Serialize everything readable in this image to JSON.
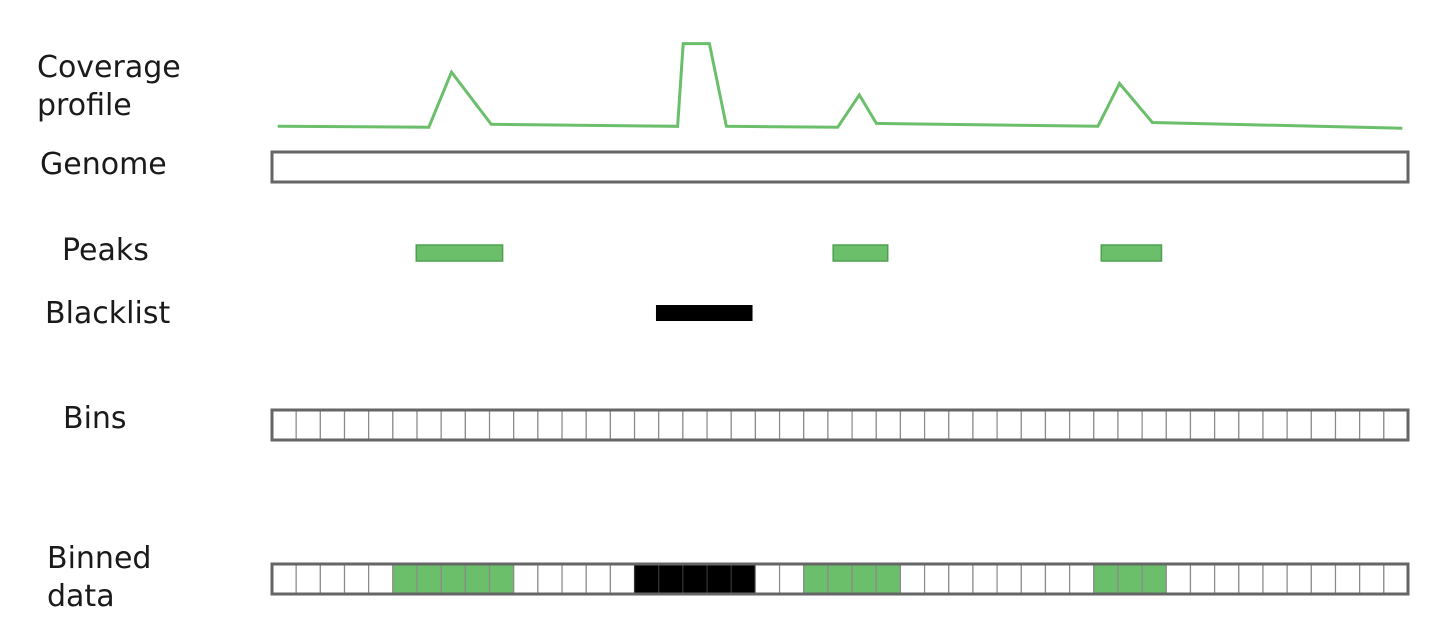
{
  "labels": {
    "coverage": "Coverage\nprofile",
    "genome": "Genome",
    "peaks": "Peaks",
    "blacklist": "Blacklist",
    "bins": "Bins",
    "binned": "Binned\ndata"
  },
  "colors": {
    "coverage_line": "#6bbf6b",
    "peak_fill": "#6bbf6b",
    "peak_stroke": "#4f9f4f",
    "blacklist_fill": "#000000",
    "frame": "#666666",
    "bin_stroke": "#8a8a8a",
    "bin_fill": "#ffffff"
  },
  "genome": {
    "length": 1000
  },
  "bin_count": 47,
  "coverage_profile": [
    [
      5,
      0.05
    ],
    [
      138,
      0.04
    ],
    [
      158,
      0.62
    ],
    [
      193,
      0.07
    ],
    [
      357,
      0.05
    ],
    [
      362,
      0.92
    ],
    [
      385,
      0.92
    ],
    [
      400,
      0.05
    ],
    [
      498,
      0.04
    ],
    [
      517,
      0.38
    ],
    [
      532,
      0.08
    ],
    [
      727,
      0.05
    ],
    [
      746,
      0.5
    ],
    [
      775,
      0.09
    ],
    [
      995,
      0.03
    ]
  ],
  "peaks": [
    {
      "start": 127,
      "end": 203
    },
    {
      "start": 494,
      "end": 542
    },
    {
      "start": 730,
      "end": 783
    }
  ],
  "blacklist": [
    {
      "start": 338,
      "end": 423
    }
  ],
  "binned_data": [
    "empty",
    "empty",
    "empty",
    "empty",
    "empty",
    "peak",
    "peak",
    "peak",
    "peak",
    "peak",
    "empty",
    "empty",
    "empty",
    "empty",
    "empty",
    "blacklist",
    "blacklist",
    "blacklist",
    "blacklist",
    "blacklist",
    "empty",
    "empty",
    "peak",
    "peak",
    "peak",
    "peak",
    "empty",
    "empty",
    "empty",
    "empty",
    "empty",
    "empty",
    "empty",
    "empty",
    "peak",
    "peak",
    "peak",
    "empty",
    "empty",
    "empty",
    "empty",
    "empty",
    "empty",
    "empty",
    "empty",
    "empty",
    "empty"
  ]
}
